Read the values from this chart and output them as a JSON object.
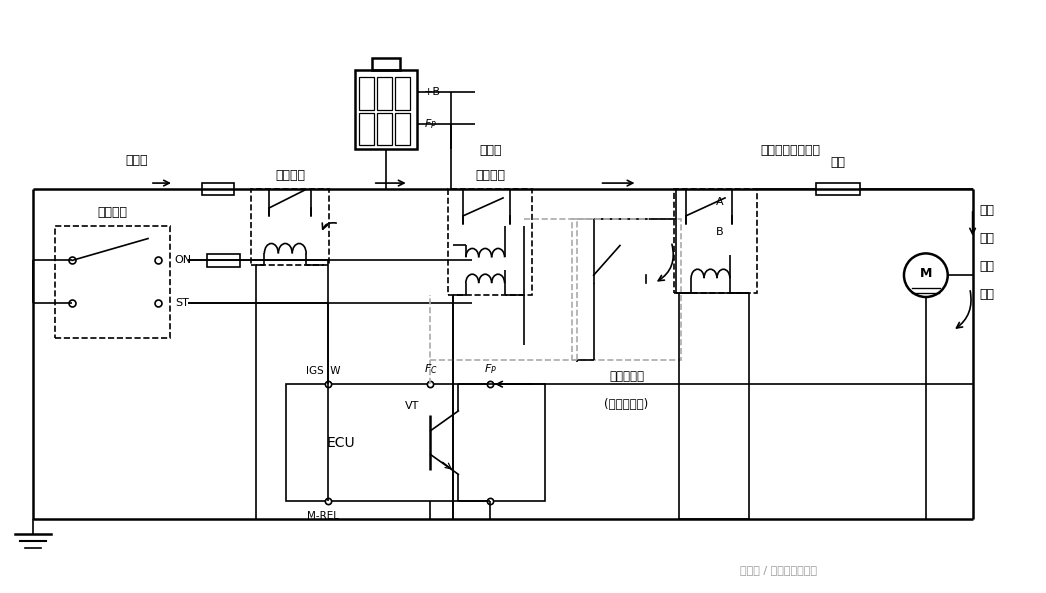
{
  "bg_color": "#ffffff",
  "line_color": "#000000",
  "dashed_color": "#888888",
  "figsize": [
    10.46,
    5.93
  ],
  "dpi": 100,
  "labels": {
    "low_speed": "低速时",
    "main_relay": "主继电器",
    "circuit_break_1": "电路断开",
    "circuit_break_2": "继电器",
    "fuel_pump_relay": "燃油泵控制继电器",
    "ignition_switch": "点火开关",
    "ON": "ON",
    "ST": "ST",
    "resistance": "电阻",
    "fuel_pump_switch_1": "燃油泵开关",
    "fuel_pump_switch_2": "(空气流量计)",
    "motor_label1": "燃油",
    "motor_label2": "泵驱",
    "motor_label3": "动电",
    "motor_label4": "动机",
    "ECU": "ECU",
    "VT": "VT",
    "M_REL": "M-REL",
    "IGS_W": "IGS  W",
    "FC": "FC",
    "FP": "FP",
    "plus_B": "+B",
    "FP_top": "FP",
    "A": "A",
    "B": "B",
    "watermark": "头条号 / 汽修技师众微联"
  }
}
